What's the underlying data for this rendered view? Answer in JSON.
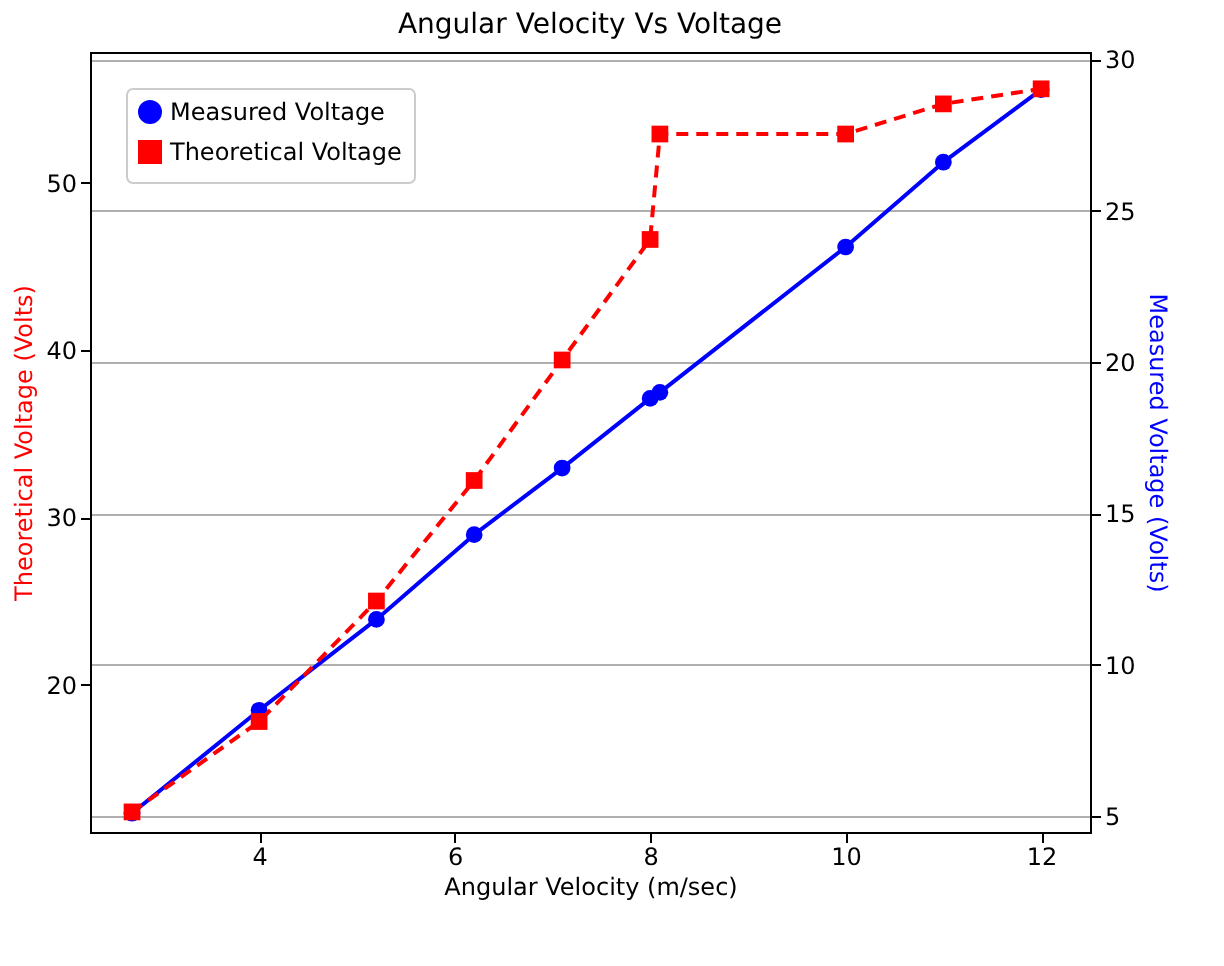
{
  "chart_data": {
    "type": "line",
    "title": "Angular Velocity Vs Voltage",
    "xlabel": "Angular Velocity (m/sec)",
    "ylabel": "Theoretical Voltage (Volts)",
    "y2label": "Measured Voltage (Volts)",
    "x": [
      2.7,
      4,
      5.2,
      6.2,
      7.1,
      8.0,
      8.1,
      10,
      11,
      12
    ],
    "series": [
      {
        "name": "Measured Voltage",
        "color": "#0000ff",
        "axis": "y2",
        "marker": "circle",
        "line_style": "solid",
        "values": [
          5.1,
          8.5,
          11.5,
          14.3,
          16.5,
          18.8,
          19.0,
          23.8,
          26.6,
          29.0
        ]
      },
      {
        "name": "Theoretical Voltage",
        "color": "#ff0000",
        "marker": "square",
        "line_style": "dashed",
        "values": [
          12.4,
          17.8,
          25.0,
          32.2,
          39.4,
          46.6,
          52.9,
          52.9,
          54.7,
          55.6
        ]
      }
    ],
    "xlim": [
      2.27,
      12.5
    ],
    "xticks": [
      4,
      6,
      8,
      10,
      12
    ],
    "ylim": [
      11.2,
      57.8
    ],
    "yticks": [
      20,
      30,
      40,
      50
    ],
    "y2lim": [
      4.48,
      30.24
    ],
    "y2ticks": [
      5,
      10,
      15,
      20,
      25,
      30
    ],
    "grid": "y2",
    "legend": "top left"
  }
}
